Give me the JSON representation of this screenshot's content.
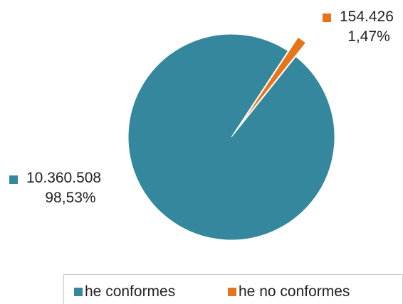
{
  "chart_data": {
    "type": "pie",
    "slices": [
      {
        "name": "he conformes",
        "value": 10360508,
        "value_label": "10.360.508",
        "percent_label": "98,53%",
        "color": "#35879E"
      },
      {
        "name": "he no conformes",
        "value": 154426,
        "value_label": "154.426",
        "percent_label": "1,47%",
        "color": "#E67519"
      }
    ],
    "exploded_slice": "he no conformes",
    "legend_position": "bottom"
  }
}
